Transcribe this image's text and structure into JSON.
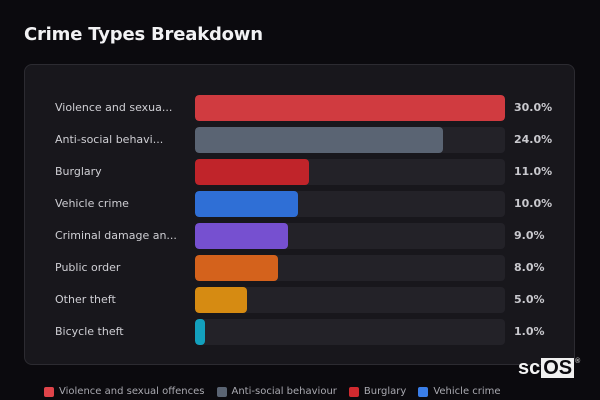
{
  "header": {
    "title": "Crime Types Breakdown"
  },
  "chart_data": {
    "type": "bar",
    "orientation": "horizontal",
    "title": "Crime Types Breakdown",
    "xlabel": "",
    "ylabel": "",
    "xlim": [
      0,
      30
    ],
    "grid": false,
    "legend_position": "bottom",
    "categories": [
      "Violence and sexual offences",
      "Anti-social behaviour",
      "Burglary",
      "Vehicle crime",
      "Criminal damage and arson",
      "Public order",
      "Other theft",
      "Bicycle theft"
    ],
    "values": [
      30.0,
      24.0,
      11.0,
      10.0,
      9.0,
      8.0,
      5.0,
      1.0
    ],
    "unit": "%"
  },
  "rows": [
    {
      "label": "Violence and sexua...",
      "value": "30.0%",
      "pct": 30.0,
      "color": "#d03b40"
    },
    {
      "label": "Anti-social behavi...",
      "value": "24.0%",
      "pct": 24.0,
      "color": "#5a6473"
    },
    {
      "label": "Burglary",
      "value": "11.0%",
      "pct": 11.0,
      "color": "#c0242a"
    },
    {
      "label": "Vehicle crime",
      "value": "10.0%",
      "pct": 10.0,
      "color": "#2f6fd6"
    },
    {
      "label": "Criminal damage an...",
      "value": "9.0%",
      "pct": 9.0,
      "color": "#7650d0"
    },
    {
      "label": "Public order",
      "value": "8.0%",
      "pct": 8.0,
      "color": "#d4621c"
    },
    {
      "label": "Other theft",
      "value": "5.0%",
      "pct": 5.0,
      "color": "#d68b12"
    },
    {
      "label": "Bicycle theft",
      "value": "1.0%",
      "pct": 1.0,
      "color": "#13a0bd"
    }
  ],
  "legend": [
    {
      "label": "Violence and sexual offences",
      "color": "#e0444a"
    },
    {
      "label": "Anti-social behaviour",
      "color": "#5a6473"
    },
    {
      "label": "Burglary",
      "color": "#d12a2f"
    },
    {
      "label": "Vehicle crime",
      "color": "#3a7ee8"
    }
  ],
  "brand": {
    "prefix": "sc",
    "box": "OS",
    "reg": "®"
  }
}
